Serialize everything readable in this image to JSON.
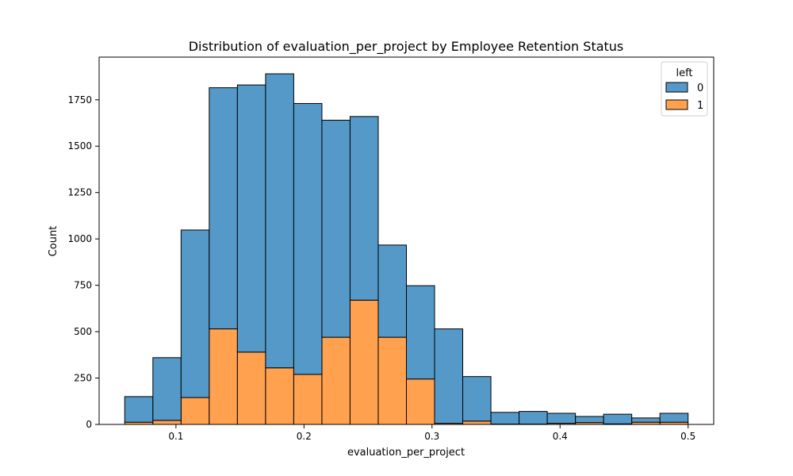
{
  "chart_data": {
    "type": "bar",
    "title": "Distribution of evaluation_per_project by Employee Retention Status",
    "xlabel": "evaluation_per_project",
    "ylabel": "Count",
    "xlim": [
      0.04,
      0.52
    ],
    "ylim": [
      0,
      1980
    ],
    "x_ticks": [
      0.1,
      0.2,
      0.3,
      0.4,
      0.5
    ],
    "y_ticks": [
      0,
      250,
      500,
      750,
      1000,
      1250,
      1500,
      1750
    ],
    "grid": false,
    "bin_edges": [
      0.06,
      0.082,
      0.104,
      0.126,
      0.148,
      0.17,
      0.192,
      0.214,
      0.236,
      0.258,
      0.28,
      0.302,
      0.324,
      0.346,
      0.368,
      0.39,
      0.412,
      0.434,
      0.456,
      0.478,
      0.5
    ],
    "stacked": true,
    "legend": {
      "title": "left",
      "position": "top-right",
      "entries": [
        {
          "label": "0",
          "color": "#5599c8"
        },
        {
          "label": "1",
          "color": "#ffa14f"
        }
      ]
    },
    "series": [
      {
        "name": "1",
        "color": "#ffa14f",
        "values": [
          12,
          22,
          145,
          515,
          390,
          305,
          270,
          470,
          670,
          470,
          245,
          6,
          18,
          2,
          2,
          6,
          10,
          3,
          12,
          12
        ]
      },
      {
        "name": "0",
        "color": "#5599c8",
        "values": [
          138,
          338,
          903,
          1300,
          1440,
          1585,
          1460,
          1170,
          990,
          497,
          503,
          509,
          240,
          63,
          68,
          54,
          33,
          52,
          23,
          48
        ]
      }
    ],
    "totals": [
      150,
      360,
      1048,
      1815,
      1830,
      1890,
      1730,
      1640,
      1660,
      967,
      748,
      515,
      258,
      65,
      70,
      60,
      43,
      55,
      35,
      60
    ]
  }
}
